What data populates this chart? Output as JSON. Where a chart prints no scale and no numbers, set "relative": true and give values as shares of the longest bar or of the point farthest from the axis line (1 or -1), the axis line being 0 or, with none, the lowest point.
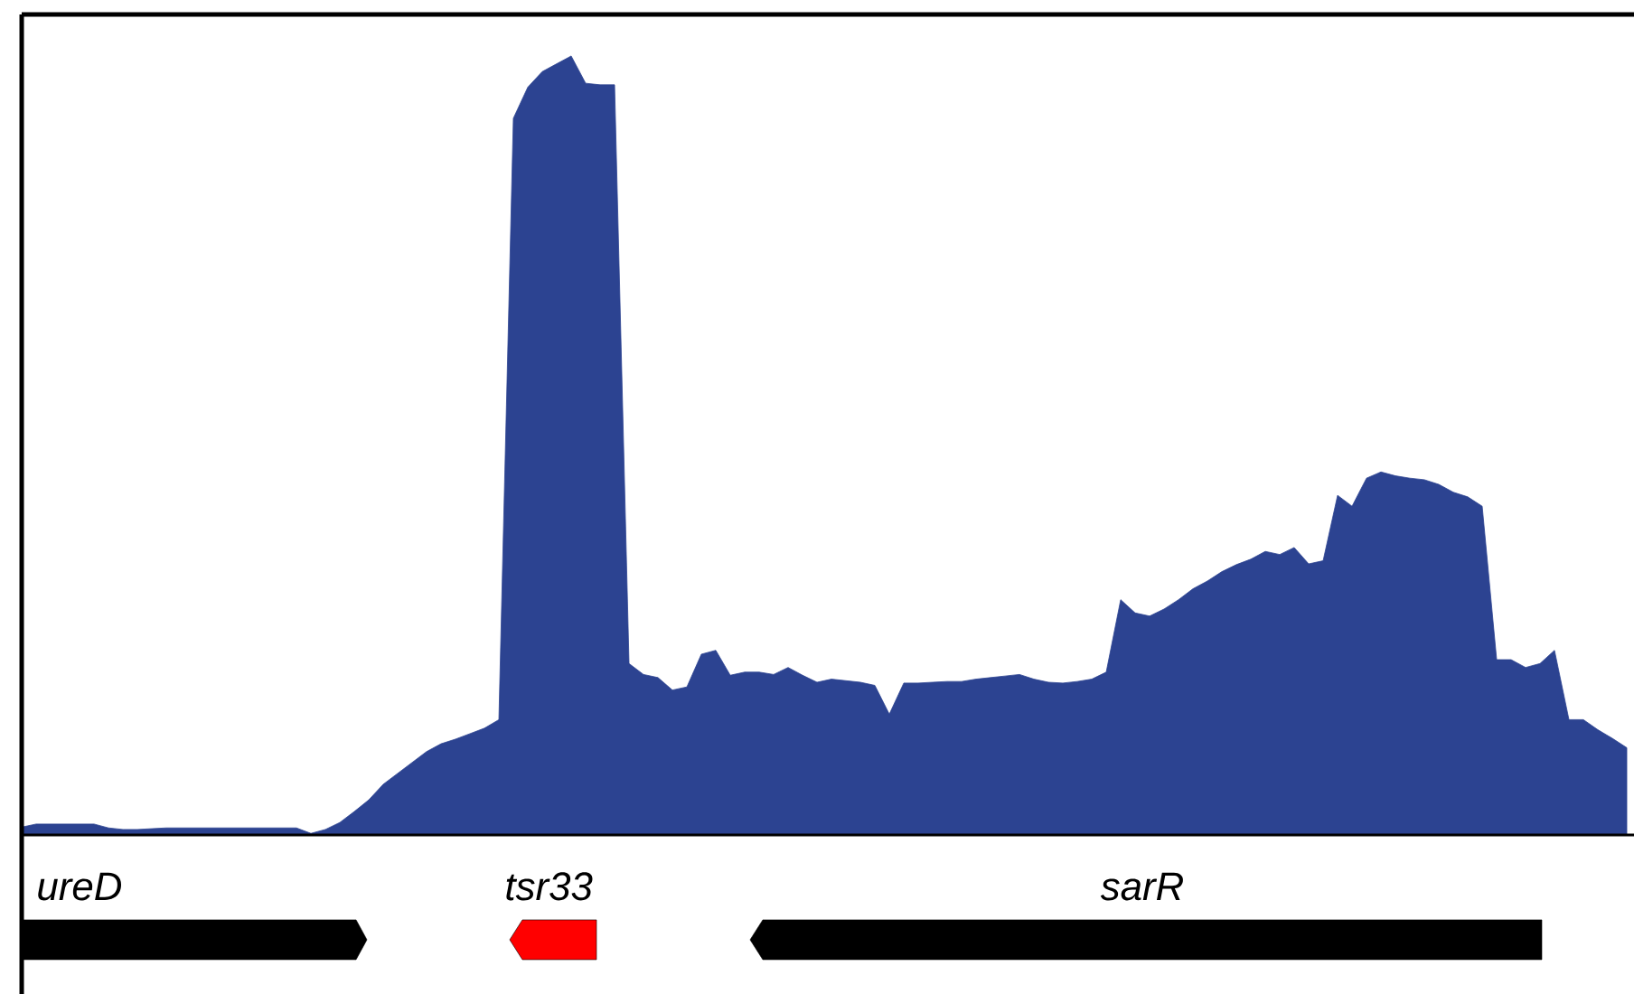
{
  "chart_data": {
    "type": "area",
    "relative": true,
    "annotations": [
      "ureD",
      "tsr33",
      "sarR"
    ],
    "categories": [
      null,
      null,
      null,
      null,
      null,
      null,
      null,
      null,
      null,
      null,
      null,
      null,
      null,
      null,
      null,
      null,
      null,
      null,
      null,
      null,
      null,
      null,
      null,
      null,
      null,
      null,
      null,
      null,
      null,
      null,
      null,
      null,
      null,
      null,
      null,
      null,
      null,
      null,
      null,
      null,
      null,
      null,
      null,
      null,
      null,
      null,
      null,
      null,
      null,
      null,
      null,
      null,
      null,
      null,
      null,
      null,
      null,
      null,
      null,
      null,
      null,
      null,
      null,
      null,
      null,
      null,
      null,
      null,
      null,
      null,
      null,
      null,
      null,
      null,
      null,
      null,
      null,
      null,
      null,
      null,
      null,
      null,
      null,
      null,
      null,
      null,
      null,
      null,
      null,
      null,
      null,
      null,
      null,
      null,
      null,
      null,
      null,
      null,
      null,
      null,
      null,
      null,
      null,
      null,
      null,
      null,
      null,
      null,
      null,
      null,
      null,
      null
    ],
    "series": [
      {
        "color": "#2c4391",
        "values": [
          0.01,
          0.014,
          0.014,
          0.014,
          0.014,
          0.014,
          0.009,
          0.007,
          0.007,
          0.008,
          0.009,
          0.009,
          0.009,
          0.009,
          0.009,
          0.009,
          0.009,
          0.009,
          0.009,
          0.009,
          0.002,
          0.007,
          0.016,
          0.03,
          0.045,
          0.065,
          0.079,
          0.093,
          0.107,
          0.117,
          0.123,
          0.13,
          0.137,
          0.148,
          0.92,
          0.96,
          0.98,
          0.99,
          1,
          0.965,
          0.963,
          0.963,
          0.22,
          0.206,
          0.202,
          0.186,
          0.19,
          0.232,
          0.237,
          0.205,
          0.209,
          0.209,
          0.206,
          0.215,
          0.205,
          0.196,
          0.2,
          0.198,
          0.196,
          0.192,
          0.155,
          0.195,
          0.195,
          0.196,
          0.197,
          0.197,
          0.2,
          0.202,
          0.204,
          0.206,
          0.2,
          0.196,
          0.195,
          0.197,
          0.2,
          0.209,
          0.302,
          0.285,
          0.281,
          0.29,
          0.302,
          0.316,
          0.326,
          0.338,
          0.347,
          0.354,
          0.364,
          0.36,
          0.369,
          0.348,
          0.352,
          0.436,
          0.422,
          0.458,
          0.466,
          0.461,
          0.458,
          0.456,
          0.45,
          0.44,
          0.434,
          0.422,
          0.225,
          0.225,
          0.215,
          0.22,
          0.237,
          0.148,
          0.148,
          0.135,
          0.124,
          0.112
        ]
      }
    ]
  }
}
